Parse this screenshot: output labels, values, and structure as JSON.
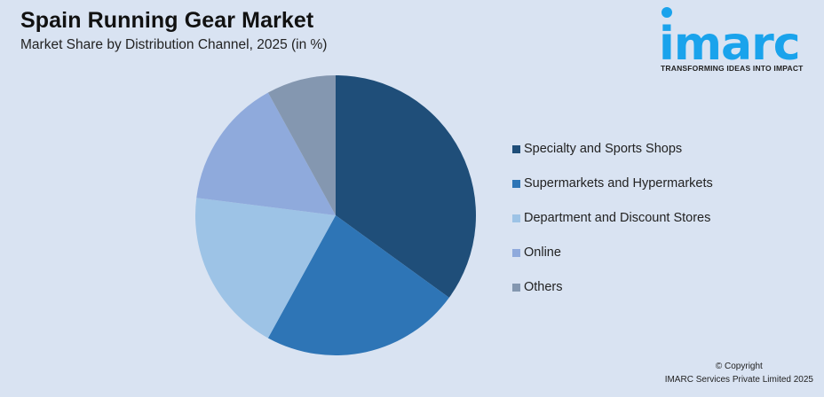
{
  "header": {
    "title": "Spain Running Gear Market",
    "subtitle": "Market Share by Distribution Channel, 2025 (in %)"
  },
  "logo": {
    "wordmark": "imarc",
    "tagline": "TRANSFORMING IDEAS INTO IMPACT",
    "color": "#1aa3ec"
  },
  "legend": {
    "items": [
      {
        "label": "Specialty and Sports Shops",
        "color": "#1f4e79"
      },
      {
        "label": "Supermarkets and Hypermarkets",
        "color": "#2e75b6"
      },
      {
        "label": "Department and Discount Stores",
        "color": "#9dc3e6"
      },
      {
        "label": "Online",
        "color": "#8faadc"
      },
      {
        "label": "Others",
        "color": "#8497b0"
      }
    ]
  },
  "footer": {
    "line1": "© Copyright",
    "line2": "IMARC Services Private Limited 2025"
  },
  "chart_data": {
    "type": "pie",
    "title": "Spain Running Gear Market",
    "subtitle": "Market Share by Distribution Channel, 2025 (in %)",
    "categories": [
      "Specialty and Sports Shops",
      "Supermarkets and Hypermarkets",
      "Department and Discount Stores",
      "Online",
      "Others"
    ],
    "values": [
      35,
      23,
      19,
      15,
      8
    ],
    "colors": [
      "#1f4e79",
      "#2e75b6",
      "#9dc3e6",
      "#8faadc",
      "#8497b0"
    ],
    "start_angle": "12 o'clock, clockwise",
    "legend_position": "right",
    "data_labels": false
  }
}
